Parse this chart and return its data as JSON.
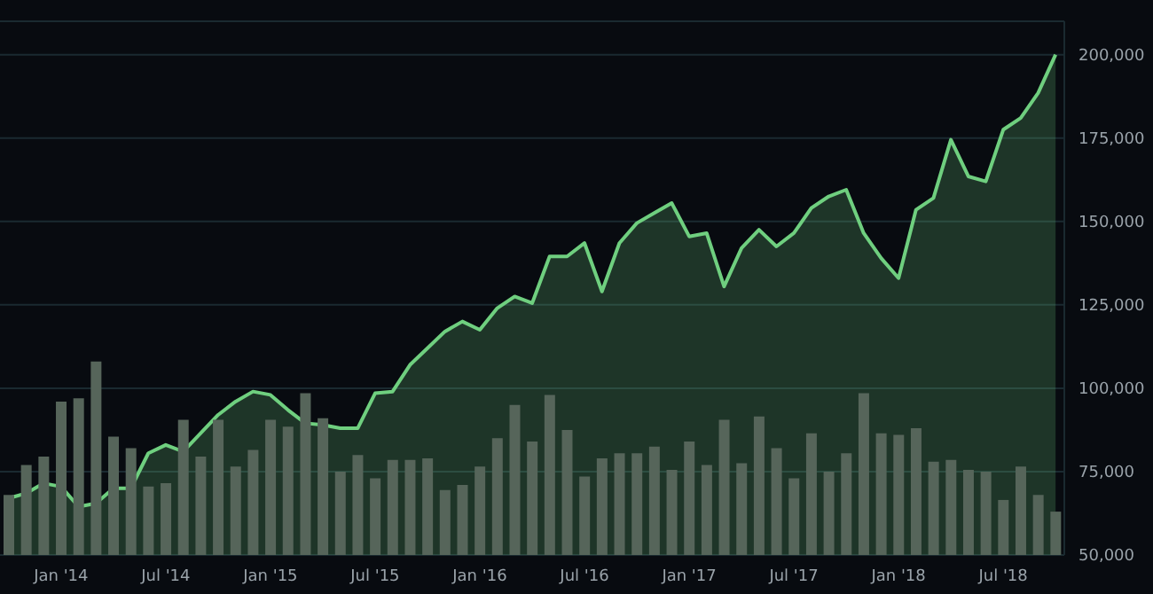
{
  "chart_data": {
    "type": "area",
    "categories": [
      null,
      null,
      null,
      "Jan '14",
      null,
      null,
      null,
      null,
      null,
      "Jul '14",
      null,
      null,
      null,
      null,
      null,
      "Jan '15",
      null,
      null,
      null,
      null,
      null,
      "Jul '15",
      null,
      null,
      null,
      null,
      null,
      "Jan '16",
      null,
      null,
      null,
      null,
      null,
      "Jul '16",
      null,
      null,
      null,
      null,
      null,
      "Jan '17",
      null,
      null,
      null,
      null,
      null,
      "Jul '17",
      null,
      null,
      null,
      null,
      null,
      "Jan '18",
      null,
      null,
      null,
      null,
      null,
      "Jul '18",
      null,
      null,
      null
    ],
    "series": [
      {
        "type": "bar",
        "color": "#56655a",
        "values": [
          68000,
          77000,
          79500,
          96000,
          97000,
          108000,
          85500,
          82000,
          70500,
          71500,
          90500,
          79500,
          90500,
          76500,
          81500,
          90500,
          88500,
          98500,
          91000,
          75000,
          80000,
          73000,
          78500,
          78500,
          79000,
          69500,
          71000,
          76500,
          85000,
          95000,
          84000,
          98000,
          87500,
          73500,
          79000,
          80500,
          80500,
          82500,
          75500,
          84000,
          77000,
          90500,
          77500,
          91500,
          82000,
          73000,
          86500,
          75000,
          80500,
          98500,
          86500,
          86000,
          88000,
          78000,
          78500,
          75500,
          75000,
          66500,
          76500,
          68000,
          63000
        ]
      },
      {
        "color": "#6fcf7f",
        "values": [
          67000,
          68500,
          71500,
          70500,
          64500,
          65500,
          70000,
          70000,
          80500,
          83000,
          81000,
          86500,
          92000,
          96000,
          99000,
          98000,
          93500,
          89500,
          89000,
          88000,
          88000,
          98500,
          99000,
          107000,
          112000,
          117000,
          120000,
          117500,
          124000,
          127500,
          125500,
          139500,
          139500,
          143500,
          129000,
          143500,
          149500,
          152500,
          155500,
          145500,
          146500,
          130500,
          142000,
          147500,
          142500,
          146500,
          154000,
          157500,
          159500,
          146500,
          139000,
          133000,
          153500,
          157000,
          174500,
          163500,
          162000,
          177500,
          181000,
          188500,
          200000
        ]
      }
    ],
    "ylim": [
      50000,
      210000
    ],
    "yticks": [
      {
        "value": 50000,
        "label": "50,000"
      },
      {
        "value": 75000,
        "label": "75,000"
      },
      {
        "value": 100000,
        "label": "100,000"
      },
      {
        "value": 125000,
        "label": "125,000"
      },
      {
        "value": 150000,
        "label": "150,000"
      },
      {
        "value": 175000,
        "label": "175,000"
      },
      {
        "value": 200000,
        "label": "200,000"
      }
    ],
    "grid": "y"
  }
}
